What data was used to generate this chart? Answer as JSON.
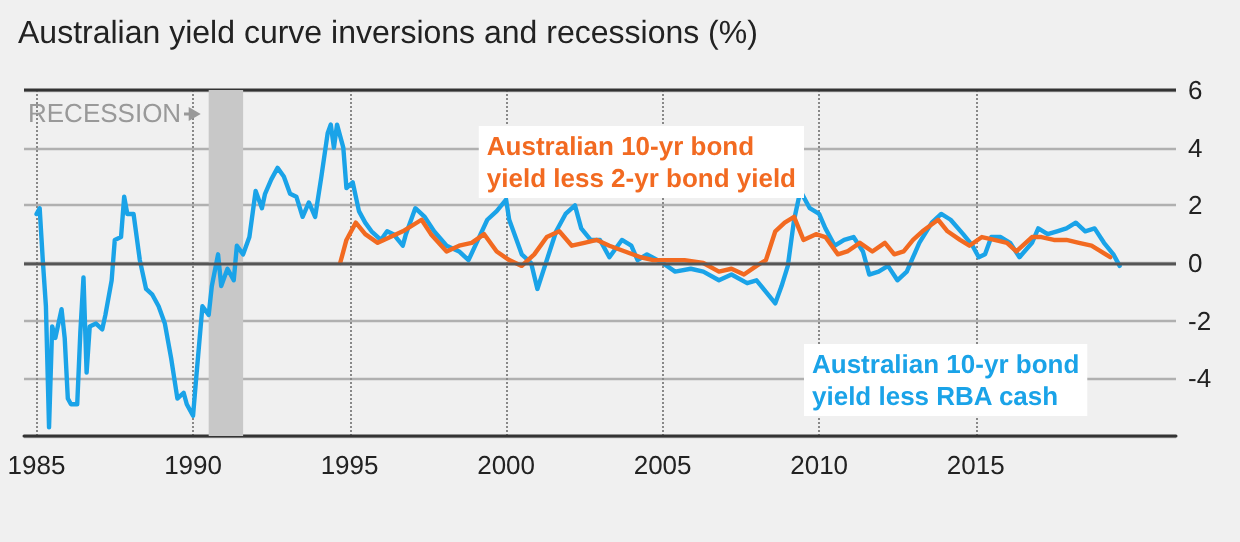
{
  "chart_data": {
    "type": "line",
    "title": "Australian yield curve inversions and recessions (%)",
    "xlim": [
      1984.6,
      2021.4
    ],
    "xticks": [
      1985,
      1990,
      1995,
      2000,
      2005,
      2010,
      2015
    ],
    "ylim": [
      -6,
      6
    ],
    "yticks": [
      6,
      4,
      2,
      0,
      -2,
      -4,
      {
        "value": -6,
        "label": null
      }
    ],
    "grid": true,
    "legend": false,
    "marker": "none",
    "line_style": "solid",
    "ref_lines": [
      {
        "axis": "y",
        "value": 0,
        "color": "#555555"
      }
    ],
    "bands": [
      {
        "axis": "x",
        "from": 1990.5,
        "to": 1991.6,
        "label": "RECESSION",
        "color": "#c8c8c8"
      }
    ],
    "series": [
      {
        "name": "Australian 10-yr bond yield less RBA cash",
        "color": "#1aa3e8",
        "x": [
          1985.0,
          1985.1,
          1985.2,
          1985.3,
          1985.4,
          1985.5,
          1985.6,
          1985.8,
          1985.9,
          1986.0,
          1986.1,
          1986.3,
          1986.4,
          1986.5,
          1986.6,
          1986.7,
          1986.9,
          1987.1,
          1987.2,
          1987.4,
          1987.5,
          1987.7,
          1987.8,
          1987.9,
          1988.1,
          1988.3,
          1988.5,
          1988.7,
          1988.9,
          1989.1,
          1989.3,
          1989.5,
          1989.7,
          1989.8,
          1990.0,
          1990.1,
          1990.3,
          1990.5,
          1990.6,
          1990.8,
          1990.9,
          1991.1,
          1991.3,
          1991.4,
          1991.6,
          1991.8,
          1992.0,
          1992.2,
          1992.3,
          1992.5,
          1992.7,
          1992.9,
          1993.1,
          1993.3,
          1993.5,
          1993.7,
          1993.9,
          1994.1,
          1994.3,
          1994.4,
          1994.5,
          1994.6,
          1994.8,
          1994.9,
          1995.1,
          1995.3,
          1995.5,
          1995.7,
          1996.0,
          1996.2,
          1996.4,
          1996.7,
          1996.8,
          1997.1,
          1997.4,
          1997.7,
          1998.1,
          1998.5,
          1998.8,
          1999.1,
          1999.4,
          1999.7,
          2000.0,
          2000.1,
          2000.5,
          2000.8,
          2001.0,
          2001.3,
          2001.6,
          2001.9,
          2002.2,
          2002.4,
          2002.7,
          2003.0,
          2003.3,
          2003.7,
          2004.0,
          2004.2,
          2004.5,
          2005.0,
          2005.4,
          2005.9,
          2006.3,
          2006.8,
          2007.2,
          2007.7,
          2008.0,
          2008.3,
          2008.6,
          2008.8,
          2009.0,
          2009.2,
          2009.4,
          2009.7,
          2010.0,
          2010.2,
          2010.5,
          2010.8,
          2011.1,
          2011.4,
          2011.6,
          2011.9,
          2012.2,
          2012.5,
          2012.8,
          2013.0,
          2013.2,
          2013.6,
          2013.9,
          2014.2,
          2014.6,
          2014.9,
          2015.1,
          2015.3,
          2015.5,
          2015.8,
          2016.1,
          2016.4,
          2016.8,
          2017.0,
          2017.3,
          2017.6,
          2017.9,
          2018.2,
          2018.5,
          2018.8,
          2019.1,
          2019.4,
          2019.6
        ],
        "values": [
          1.7,
          1.9,
          0.1,
          -1.5,
          -5.7,
          -2.2,
          -2.6,
          -1.6,
          -2.6,
          -4.7,
          -4.9,
          -4.9,
          -2.4,
          -0.5,
          -3.8,
          -2.2,
          -2.1,
          -2.3,
          -1.8,
          -0.6,
          0.8,
          0.9,
          2.3,
          1.7,
          1.7,
          0.1,
          -0.9,
          -1.1,
          -1.5,
          -2.1,
          -3.3,
          -4.7,
          -4.5,
          -4.9,
          -5.3,
          -4.0,
          -1.5,
          -1.8,
          -0.8,
          0.3,
          -0.8,
          -0.2,
          -0.6,
          0.6,
          0.3,
          0.9,
          2.5,
          1.9,
          2.4,
          2.9,
          3.3,
          3.0,
          2.4,
          2.3,
          1.6,
          2.1,
          1.6,
          3.0,
          4.5,
          4.8,
          4.0,
          4.8,
          4.0,
          2.6,
          2.8,
          1.8,
          1.4,
          1.1,
          0.8,
          1.1,
          1.0,
          0.6,
          1.0,
          1.9,
          1.6,
          1.1,
          0.6,
          0.4,
          0.1,
          0.8,
          1.5,
          1.8,
          2.2,
          1.5,
          0.3,
          0.0,
          -0.9,
          0.1,
          1.1,
          1.7,
          2.0,
          1.2,
          0.8,
          0.8,
          0.2,
          0.8,
          0.6,
          0.1,
          0.3,
          0.0,
          -0.3,
          -0.2,
          -0.3,
          -0.6,
          -0.4,
          -0.7,
          -0.6,
          -1.0,
          -1.4,
          -0.8,
          -0.1,
          1.5,
          2.5,
          1.9,
          1.7,
          1.2,
          0.6,
          0.8,
          0.9,
          0.4,
          -0.4,
          -0.3,
          -0.1,
          -0.6,
          -0.3,
          0.2,
          0.7,
          1.4,
          1.7,
          1.5,
          1.0,
          0.6,
          0.2,
          0.3,
          0.9,
          0.9,
          0.7,
          0.2,
          0.7,
          1.2,
          1.0,
          1.1,
          1.2,
          1.4,
          1.1,
          1.2,
          0.7,
          0.3,
          -0.1
        ]
      },
      {
        "name": "Australian 10-yr bond yield less 2-yr bond yield",
        "color": "#f26a21",
        "x": [
          1994.7,
          1994.9,
          1995.2,
          1995.5,
          1995.9,
          1996.3,
          1996.7,
          1997.3,
          1997.6,
          1998.1,
          1998.5,
          1998.9,
          1999.3,
          1999.7,
          2000.1,
          2000.5,
          2000.9,
          2001.3,
          2001.7,
          2002.1,
          2002.5,
          2002.9,
          2003.3,
          2003.8,
          2004.3,
          2004.7,
          2005.1,
          2005.7,
          2006.3,
          2006.8,
          2007.2,
          2007.6,
          2008.0,
          2008.3,
          2008.6,
          2008.9,
          2009.2,
          2009.5,
          2009.9,
          2010.2,
          2010.6,
          2010.9,
          2011.3,
          2011.7,
          2012.1,
          2012.4,
          2012.7,
          2013.0,
          2013.3,
          2013.8,
          2014.1,
          2014.5,
          2014.8,
          2015.2,
          2015.6,
          2016.0,
          2016.3,
          2016.8,
          2017.1,
          2017.5,
          2017.9,
          2018.3,
          2018.7,
          2019.0,
          2019.3
        ],
        "values": [
          0.0,
          0.8,
          1.4,
          1.0,
          0.7,
          0.9,
          1.1,
          1.5,
          1.0,
          0.4,
          0.6,
          0.7,
          1.0,
          0.4,
          0.1,
          -0.1,
          0.3,
          0.9,
          1.1,
          0.6,
          0.7,
          0.8,
          0.6,
          0.4,
          0.2,
          0.1,
          0.1,
          0.1,
          0.0,
          -0.3,
          -0.2,
          -0.4,
          -0.1,
          0.1,
          1.1,
          1.4,
          1.6,
          0.8,
          1.0,
          0.9,
          0.3,
          0.4,
          0.7,
          0.4,
          0.7,
          0.3,
          0.4,
          0.8,
          1.1,
          1.5,
          1.1,
          0.8,
          0.6,
          0.9,
          0.8,
          0.7,
          0.4,
          0.9,
          0.9,
          0.8,
          0.8,
          0.7,
          0.6,
          0.4,
          0.2
        ]
      }
    ]
  }
}
